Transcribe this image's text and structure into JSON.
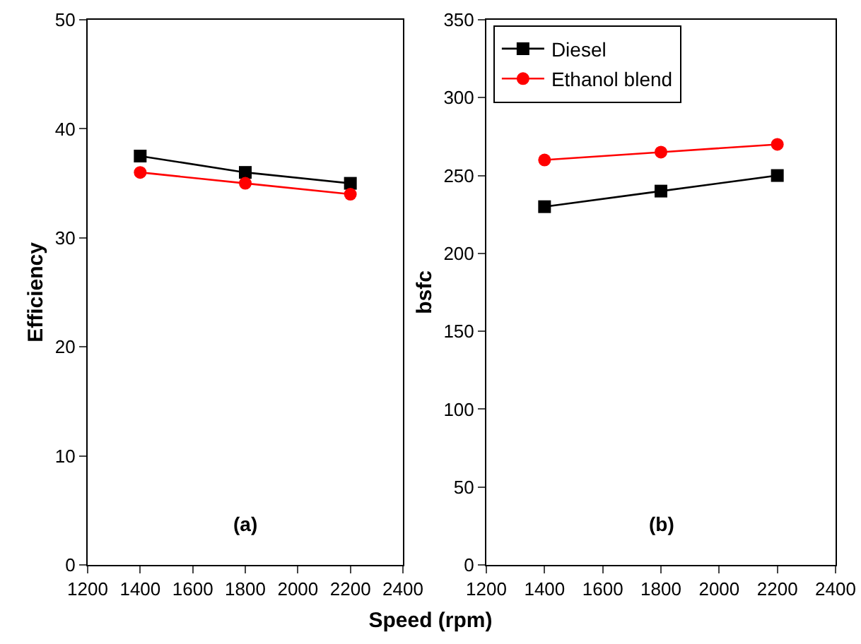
{
  "chart_data": [
    {
      "type": "line",
      "ylabel": "Efficiency",
      "xlabel": "Speed (rpm)",
      "annotations": [
        "(a)"
      ],
      "x": [
        1400,
        1800,
        2200
      ],
      "series": [
        {
          "color": "#000000",
          "marker": "square",
          "values": [
            37.5,
            36,
            35
          ]
        },
        {
          "color": "#ff0000",
          "marker": "circle",
          "values": [
            36,
            35,
            34
          ]
        }
      ],
      "xlim": [
        1200,
        2400
      ],
      "xticks": [
        1200,
        1400,
        1600,
        1800,
        2000,
        2200,
        2400
      ],
      "ylim": [
        0,
        50
      ],
      "yticks": [
        0,
        10,
        20,
        30,
        40,
        50
      ],
      "grid": false,
      "legend": false
    },
    {
      "type": "line",
      "ylabel": "bsfc",
      "annotations": [
        "(b)"
      ],
      "x": [
        1400,
        1800,
        2200
      ],
      "series": [
        {
          "name": "Diesel",
          "color": "#000000",
          "marker": "square",
          "values": [
            230,
            240,
            250
          ]
        },
        {
          "name": "Ethanol blend",
          "color": "#ff0000",
          "marker": "circle",
          "values": [
            260,
            265,
            270
          ]
        }
      ],
      "xlim": [
        1200,
        2400
      ],
      "xticks": [
        1200,
        1400,
        1600,
        1800,
        2000,
        2200,
        2400
      ],
      "ylim": [
        0,
        350
      ],
      "yticks": [
        0,
        50,
        100,
        150,
        200,
        250,
        300,
        350
      ],
      "grid": false,
      "legend": "top left"
    }
  ]
}
